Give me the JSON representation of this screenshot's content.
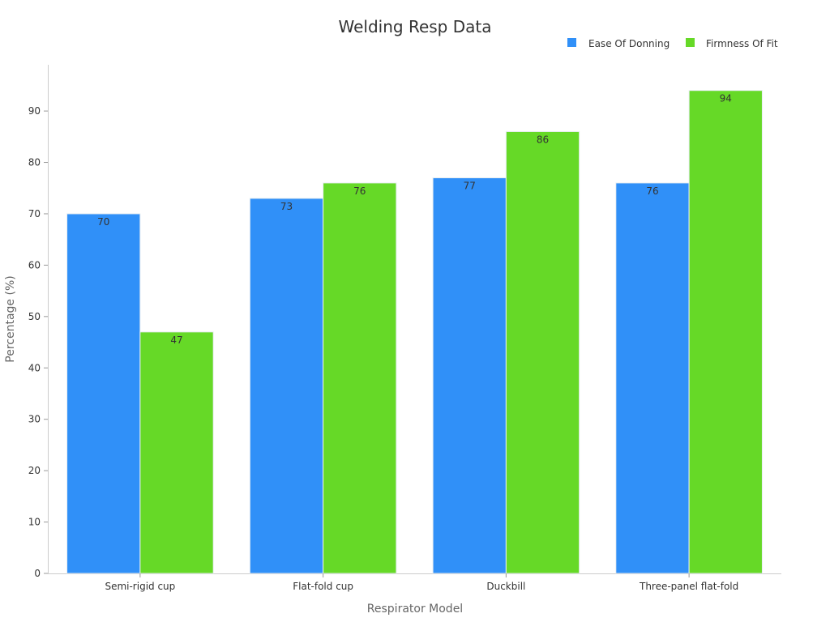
{
  "chart_data": {
    "type": "bar",
    "title": "Welding Resp Data",
    "xlabel": "Respirator Model",
    "ylabel": "Percentage (%)",
    "categories": [
      "Semi-rigid cup",
      "Flat-fold cup",
      "Duckbill",
      "Three-panel flat-fold"
    ],
    "series": [
      {
        "name": "Ease Of Donning",
        "values": [
          70,
          73,
          77,
          76
        ],
        "color": "#3090f8"
      },
      {
        "name": "Firmness Of Fit",
        "values": [
          47,
          76,
          86,
          94
        ],
        "color": "#66d927"
      }
    ],
    "ylim": [
      0,
      99
    ],
    "yticks": [
      0,
      10,
      20,
      30,
      40,
      50,
      60,
      70,
      80,
      90
    ],
    "legend_position": "top-right",
    "grid": false,
    "data_labels": true
  }
}
